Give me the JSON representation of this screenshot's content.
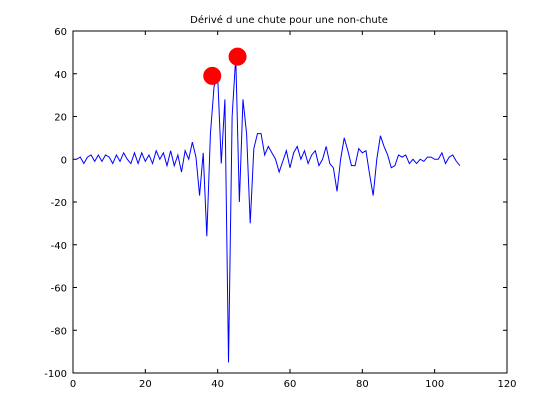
{
  "chart_data": {
    "type": "line",
    "title": "Dérivé d une chute pour une non-chute",
    "xlabel": "",
    "ylabel": "",
    "xlim": [
      0,
      120
    ],
    "ylim": [
      -100,
      60
    ],
    "xticks": [
      0,
      20,
      40,
      60,
      80,
      100,
      120
    ],
    "yticks": [
      -100,
      -80,
      -60,
      -40,
      -20,
      0,
      20,
      40,
      60
    ],
    "grid": false,
    "line_color": "#0000ff",
    "marker_color": "#ff0000",
    "series": [
      {
        "values": [
          [
            1,
            0
          ],
          [
            2,
            1
          ],
          [
            3,
            -2
          ],
          [
            4,
            1
          ],
          [
            5,
            2
          ],
          [
            6,
            -1
          ],
          [
            7,
            2
          ],
          [
            8,
            -1
          ],
          [
            9,
            2
          ],
          [
            10,
            1
          ],
          [
            11,
            -2
          ],
          [
            12,
            2
          ],
          [
            13,
            -1
          ],
          [
            14,
            3
          ],
          [
            15,
            0
          ],
          [
            16,
            -2
          ],
          [
            17,
            3
          ],
          [
            18,
            -2
          ],
          [
            19,
            3
          ],
          [
            20,
            -1
          ],
          [
            21,
            2
          ],
          [
            22,
            -2
          ],
          [
            23,
            4
          ],
          [
            24,
            0
          ],
          [
            25,
            3
          ],
          [
            26,
            -3
          ],
          [
            27,
            4
          ],
          [
            28,
            -3
          ],
          [
            29,
            2
          ],
          [
            30,
            -6
          ],
          [
            31,
            4
          ],
          [
            32,
            0
          ],
          [
            33,
            8
          ],
          [
            34,
            1
          ],
          [
            35,
            -17
          ],
          [
            36,
            3
          ],
          [
            37,
            -36
          ],
          [
            38,
            12
          ],
          [
            39,
            34
          ],
          [
            40,
            39
          ],
          [
            41,
            -2
          ],
          [
            42,
            28
          ],
          [
            43,
            -95
          ],
          [
            44,
            20
          ],
          [
            45,
            48
          ],
          [
            46,
            -20
          ],
          [
            47,
            28
          ],
          [
            48,
            12
          ],
          [
            49,
            -30
          ],
          [
            50,
            5
          ],
          [
            51,
            12
          ],
          [
            52,
            12
          ],
          [
            53,
            2
          ],
          [
            54,
            6
          ],
          [
            55,
            3
          ],
          [
            56,
            0
          ],
          [
            57,
            -6
          ],
          [
            58,
            -1
          ],
          [
            59,
            4
          ],
          [
            60,
            -4
          ],
          [
            61,
            3
          ],
          [
            62,
            6
          ],
          [
            63,
            0
          ],
          [
            64,
            4
          ],
          [
            65,
            -2
          ],
          [
            66,
            2
          ],
          [
            67,
            4
          ],
          [
            68,
            -3
          ],
          [
            69,
            0
          ],
          [
            70,
            6
          ],
          [
            71,
            -2
          ],
          [
            72,
            -4
          ],
          [
            73,
            -15
          ],
          [
            74,
            0
          ],
          [
            75,
            10
          ],
          [
            76,
            4
          ],
          [
            77,
            -3
          ],
          [
            78,
            -3
          ],
          [
            79,
            5
          ],
          [
            80,
            3
          ],
          [
            81,
            4
          ],
          [
            82,
            -7
          ],
          [
            83,
            -17
          ],
          [
            84,
            0
          ],
          [
            85,
            11
          ],
          [
            86,
            6
          ],
          [
            87,
            2
          ],
          [
            88,
            -4
          ],
          [
            89,
            -3
          ],
          [
            90,
            2
          ],
          [
            91,
            1
          ],
          [
            92,
            2
          ],
          [
            93,
            -2
          ],
          [
            94,
            0
          ],
          [
            95,
            -2
          ],
          [
            96,
            0
          ],
          [
            97,
            -1
          ],
          [
            98,
            1
          ],
          [
            99,
            1
          ],
          [
            100,
            0
          ],
          [
            101,
            0
          ],
          [
            102,
            3
          ],
          [
            103,
            -2
          ],
          [
            104,
            1
          ],
          [
            105,
            2
          ],
          [
            106,
            -1
          ],
          [
            107,
            -3
          ]
        ]
      }
    ],
    "markers": [
      {
        "x": 38.5,
        "y": 39
      },
      {
        "x": 45.5,
        "y": 48
      }
    ]
  }
}
